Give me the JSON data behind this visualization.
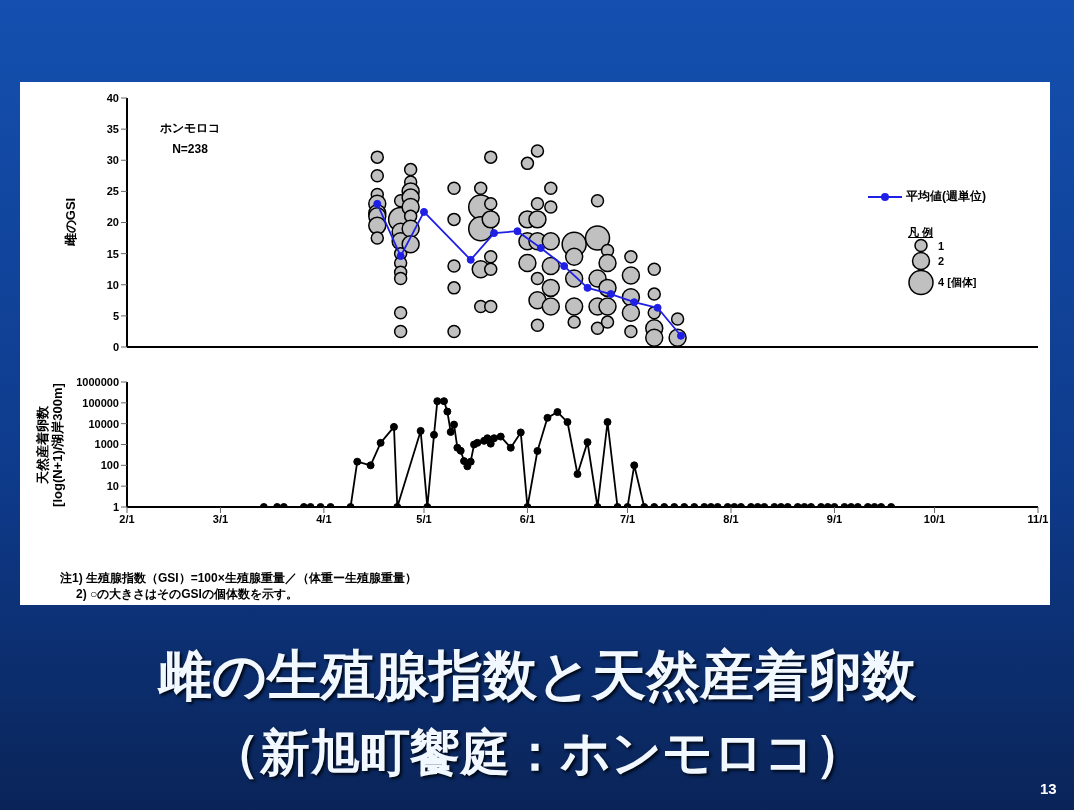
{
  "chart_data": [
    {
      "type": "bubble",
      "ylabel": "雌のGSI",
      "annotations": [
        "ホンモロコ",
        "N=238"
      ],
      "legend": "right",
      "legend_title": "凡 例",
      "size_legend": [
        1,
        2,
        {
          "value": 4,
          "label": "4 [個体]"
        }
      ],
      "tick_labels": "y",
      "xlim": [
        "--02-01",
        "--11-01"
      ],
      "ylim": [
        0,
        40
      ],
      "yticks": [
        0,
        5,
        10,
        15,
        20,
        25,
        30,
        35,
        40
      ],
      "series": [
        {
          "color": "#c0c0c0",
          "x": [
            "--04-17",
            "--04-17",
            "--04-17",
            "--04-17",
            "--04-17",
            "--04-17",
            "--04-17",
            "--04-17",
            "--04-24",
            "--04-24",
            "--04-24",
            "--04-24",
            "--04-24",
            "--04-24",
            "--04-24",
            "--04-24",
            "--04-24",
            "--04-24",
            "--04-27",
            "--04-27",
            "--04-27",
            "--04-27",
            "--04-27",
            "--04-27",
            "--04-27",
            "--04-27",
            "--05-10",
            "--05-10",
            "--05-10",
            "--05-10",
            "--05-10",
            "--05-18",
            "--05-18",
            "--05-18",
            "--05-18",
            "--05-18",
            "--05-21",
            "--05-21",
            "--05-21",
            "--05-21",
            "--05-21",
            "--05-21",
            "--06-01",
            "--06-01",
            "--06-01",
            "--06-01",
            "--06-04",
            "--06-04",
            "--06-04",
            "--06-04",
            "--06-04",
            "--06-04",
            "--06-04",
            "--06-08",
            "--06-08",
            "--06-08",
            "--06-08",
            "--06-08",
            "--06-08",
            "--06-15",
            "--06-15",
            "--06-15",
            "--06-15",
            "--06-15",
            "--06-22",
            "--06-22",
            "--06-22",
            "--06-22",
            "--06-22",
            "--06-25",
            "--06-25",
            "--06-25",
            "--06-25",
            "--06-25",
            "--07-02",
            "--07-02",
            "--07-02",
            "--07-02",
            "--07-02",
            "--07-09",
            "--07-09",
            "--07-09",
            "--07-09",
            "--07-09",
            "--07-16",
            "--07-16"
          ],
          "values": [
            30.5,
            27.5,
            24.5,
            23,
            21.5,
            21,
            19.5,
            17.5,
            23.5,
            20.5,
            18.5,
            17,
            15,
            13.5,
            12,
            11,
            5.5,
            2.5,
            28.5,
            26.5,
            25,
            24,
            22.5,
            21,
            19,
            16.5,
            25.5,
            20.5,
            13,
            9.5,
            2.5,
            25.5,
            22.5,
            19,
            12.5,
            6.5,
            30.5,
            23,
            20.5,
            14.5,
            12.5,
            6.5,
            29.5,
            20.5,
            17,
            13.5,
            31.5,
            23,
            20.5,
            17,
            11,
            7.5,
            3.5,
            25.5,
            22.5,
            17,
            13,
            9.5,
            6.5,
            16.5,
            14.5,
            11,
            6.5,
            4,
            23.5,
            17.5,
            11,
            6.5,
            3,
            15.5,
            13.5,
            9.5,
            6.5,
            4,
            14.5,
            11.5,
            8,
            5.5,
            2.5,
            12.5,
            8.5,
            5.5,
            3,
            1.5,
            4.5,
            1.5
          ],
          "sizes": [
            1,
            1,
            1,
            2,
            2,
            2,
            2,
            1,
            1,
            4,
            2,
            2,
            1,
            1,
            1,
            1,
            1,
            1,
            1,
            1,
            2,
            2,
            2,
            1,
            2,
            2,
            1,
            1,
            1,
            1,
            1,
            1,
            4,
            4,
            2,
            1,
            1,
            1,
            2,
            1,
            1,
            1,
            1,
            2,
            2,
            2,
            1,
            1,
            2,
            2,
            1,
            2,
            1,
            1,
            1,
            2,
            2,
            2,
            2,
            4,
            2,
            2,
            2,
            1,
            1,
            4,
            2,
            2,
            1,
            1,
            2,
            2,
            2,
            1,
            1,
            2,
            2,
            2,
            1,
            1,
            1,
            1,
            2,
            2,
            1,
            2
          ]
        },
        {
          "type": "line",
          "name": "平均値(週単位)",
          "color": "#1f1fe6",
          "marker": "circle",
          "x": [
            "--04-17",
            "--04-24",
            "--05-01",
            "--05-15",
            "--05-22",
            "--05-29",
            "--06-05",
            "--06-12",
            "--06-19",
            "--06-26",
            "--07-03",
            "--07-10",
            "--07-17"
          ],
          "values": [
            23,
            14.6,
            21.7,
            14,
            18.3,
            18.6,
            15.9,
            13,
            9.5,
            8.5,
            7.2,
            6.3,
            1.8
          ]
        }
      ]
    },
    {
      "type": "line",
      "title": "雌の生殖腺指数と天然産着卵数",
      "subtitle": "（新旭町饗庭：ホンモロコ）",
      "ylabel": "天然産着卵数\n[log(N+1)/湖岸300m]",
      "annotations": [
        "注1) 生殖腺指数（GSI）=100×生殖腺重量／（体重ー生殖腺重量）",
        "2) ○の大きさはそのGSIの個体数を示す。",
        "13"
      ],
      "log": "y",
      "marker": "circle",
      "xlim": [
        "--02-01",
        "--11-01"
      ],
      "xticks": [
        {
          "value": "--02-01",
          "label": "2/1"
        },
        {
          "value": "--03-01",
          "label": "3/1"
        },
        {
          "value": "--04-01",
          "label": "4/1"
        },
        {
          "value": "--05-01",
          "label": "5/1"
        },
        {
          "value": "--06-01",
          "label": "6/1"
        },
        {
          "value": "--07-01",
          "label": "7/1"
        },
        {
          "value": "--08-01",
          "label": "8/1"
        },
        {
          "value": "--09-01",
          "label": "9/1"
        },
        {
          "value": "--10-01",
          "label": "10/1"
        },
        {
          "value": "--11-01",
          "label": "11/1"
        }
      ],
      "ylim": [
        1,
        1000000
      ],
      "yticks": [
        1,
        10,
        100,
        1000,
        10000,
        100000,
        1000000
      ],
      "series": [
        {
          "color": "#000000",
          "x": [
            "--03-14",
            "--03-18",
            "--03-20",
            "--03-26",
            "--03-28",
            "--03-31",
            "--04-03",
            "--04-09",
            "--04-11",
            "--04-15",
            "--04-18",
            "--04-22",
            "--04-23",
            "--04-30",
            "--05-02",
            "--05-04",
            "--05-05",
            "--05-07",
            "--05-08",
            "--05-09",
            "--05-10",
            "--05-11",
            "--05-12",
            "--05-13",
            "--05-14",
            "--05-15",
            "--05-16",
            "--05-17",
            "--05-19",
            "--05-20",
            "--05-21",
            "--05-22",
            "--05-24",
            "--05-27",
            "--05-30",
            "--06-01",
            "--06-04",
            "--06-07",
            "--06-10",
            "--06-13",
            "--06-16",
            "--06-19",
            "--06-22",
            "--06-25",
            "--06-28",
            "--07-01",
            "--07-03",
            "--07-06",
            "--07-09",
            "--07-12",
            "--07-15",
            "--07-18",
            "--07-21",
            "--07-24",
            "--07-26",
            "--07-28",
            "--07-31",
            "--08-02",
            "--08-04",
            "--08-07",
            "--08-09",
            "--08-11",
            "--08-14",
            "--08-16",
            "--08-18",
            "--08-21",
            "--08-23",
            "--08-25",
            "--08-28",
            "--08-30",
            "--09-01",
            "--09-04",
            "--09-06",
            "--09-08",
            "--09-11",
            "--09-13",
            "--09-15",
            "--09-18"
          ],
          "values": [
            1,
            1,
            1,
            1,
            1,
            1,
            1,
            1,
            150,
            100,
            1200,
            7000,
            1,
            4500,
            1,
            2900,
            120000,
            120000,
            38000,
            4000,
            9000,
            700,
            500,
            160,
            90,
            150,
            1000,
            1200,
            1500,
            2000,
            1100,
            2000,
            2400,
            700,
            3800,
            1,
            490,
            19000,
            36000,
            12000,
            38,
            1300,
            1,
            12000,
            1,
            1,
            100,
            1,
            1,
            1,
            1,
            1,
            1,
            1,
            1,
            1,
            1,
            1,
            1,
            1,
            1,
            1,
            1,
            1,
            1,
            1,
            1,
            1,
            1,
            1,
            1,
            1,
            1,
            1,
            1,
            1,
            1,
            1
          ]
        }
      ]
    }
  ]
}
